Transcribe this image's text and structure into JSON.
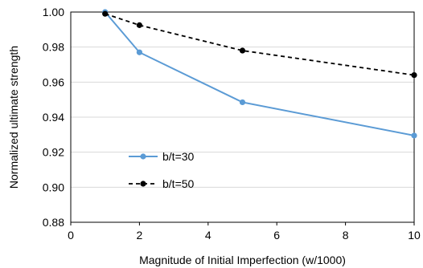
{
  "chart_data": {
    "type": "line",
    "title": "",
    "xlabel": "Magnitude of Initial Imperfection (w/1000)",
    "ylabel": "Normalized ultimate strength",
    "xlim": [
      0,
      10
    ],
    "ylim": [
      0.88,
      1.0
    ],
    "xticks": [
      0,
      2,
      4,
      6,
      8,
      10
    ],
    "yticks": [
      0.88,
      0.9,
      0.92,
      0.94,
      0.96,
      0.98,
      1.0
    ],
    "xtick_labels": [
      "0",
      "2",
      "4",
      "6",
      "8",
      "10"
    ],
    "ytick_labels": [
      "0.88",
      "0.90",
      "0.92",
      "0.94",
      "0.96",
      "0.98",
      "1.00"
    ],
    "grid": "horizontal",
    "legend_position": "lower-left",
    "series": [
      {
        "name": "b/t=30",
        "x": [
          1,
          2,
          5,
          10
        ],
        "y": [
          1.0,
          0.977,
          0.9485,
          0.9295
        ],
        "color": "#5b9bd5",
        "line_style": "solid",
        "marker": "circle"
      },
      {
        "name": "b/t=50",
        "x": [
          1,
          2,
          5,
          10
        ],
        "y": [
          0.999,
          0.9925,
          0.978,
          0.964
        ],
        "color": "#000000",
        "line_style": "dashed",
        "marker": "circle"
      }
    ]
  }
}
